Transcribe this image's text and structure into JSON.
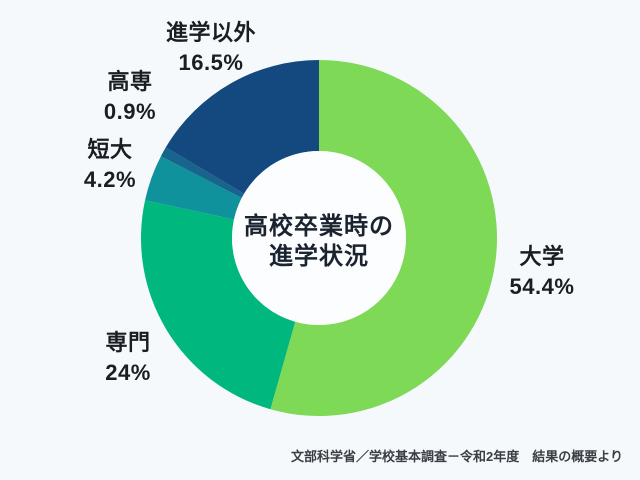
{
  "colors": {
    "background": "#f5f9fc",
    "inner_circle": "#fbfdfe",
    "label_text": "#1a1e24",
    "center_text": "#1b2330",
    "source_text": "#3a3f45"
  },
  "chart_data": {
    "type": "pie",
    "variant": "donut",
    "title": "高校卒業時の進学状況",
    "center_title_lines": [
      "高校卒業時の",
      "進学状況"
    ],
    "legend_position": "labels-around-chart",
    "start_angle_deg": 0,
    "direction": "clockwise",
    "segments": [
      {
        "key": "daigaku",
        "label": "大学",
        "value": 54.4,
        "pct": "54.4%",
        "color": "#7ed957"
      },
      {
        "key": "senmon",
        "label": "専門",
        "value": 24,
        "pct": "24%",
        "color": "#00b87e"
      },
      {
        "key": "tandai",
        "label": "短大",
        "value": 4.2,
        "pct": "4.2%",
        "color": "#0f929b"
      },
      {
        "key": "kousen",
        "label": "高専",
        "value": 0.9,
        "pct": "0.9%",
        "color": "#17648d"
      },
      {
        "key": "shingaku-igai",
        "label": "進学以外",
        "value": 16.5,
        "pct": "16.5%",
        "color": "#14497f"
      }
    ],
    "source": "文部科学省／学校基本調査－令和2年度　結果の概要より"
  }
}
